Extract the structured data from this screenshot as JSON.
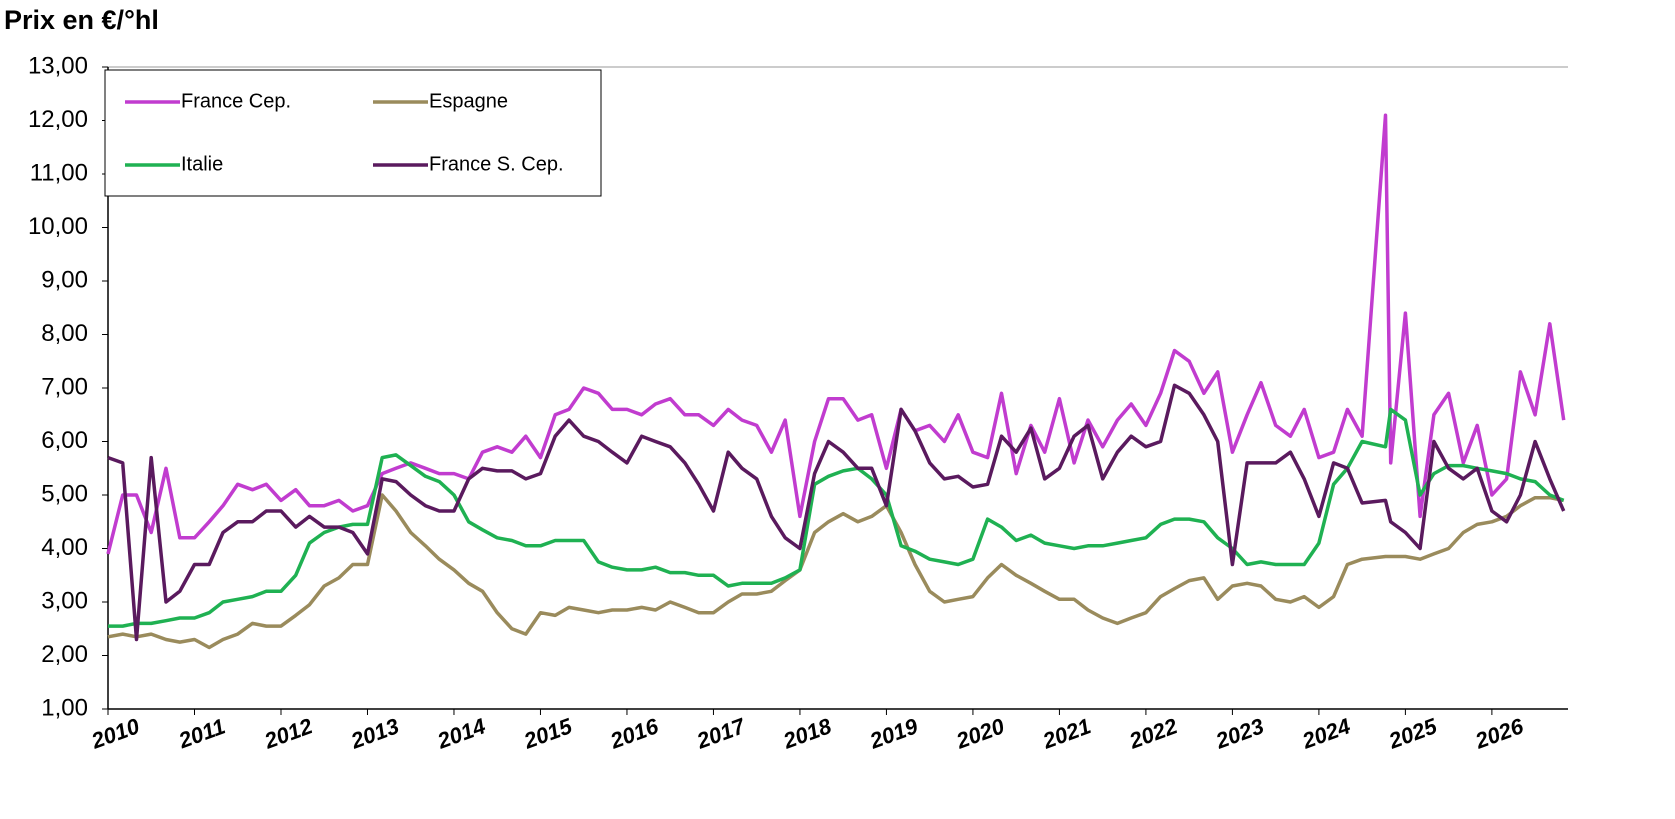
{
  "chart_data": {
    "type": "line",
    "title": "Prix en €/°hl",
    "x": [
      2010,
      2010.17,
      2010.33,
      2010.5,
      2010.67,
      2010.83,
      2011,
      2011.17,
      2011.33,
      2011.5,
      2011.67,
      2011.83,
      2012,
      2012.17,
      2012.33,
      2012.5,
      2012.67,
      2012.83,
      2013,
      2013.17,
      2013.33,
      2013.5,
      2013.67,
      2013.83,
      2014,
      2014.17,
      2014.33,
      2014.5,
      2014.67,
      2014.83,
      2015,
      2015.17,
      2015.33,
      2015.5,
      2015.67,
      2015.83,
      2016,
      2016.17,
      2016.33,
      2016.5,
      2016.67,
      2016.83,
      2017,
      2017.17,
      2017.33,
      2017.5,
      2017.67,
      2017.83,
      2018,
      2018.17,
      2018.33,
      2018.5,
      2018.67,
      2018.83,
      2019,
      2019.17,
      2019.33,
      2019.5,
      2019.67,
      2019.83,
      2020,
      2020.17,
      2020.33,
      2020.5,
      2020.67,
      2020.83,
      2021,
      2021.17,
      2021.33,
      2021.5,
      2021.67,
      2021.83,
      2022,
      2022.17,
      2022.33,
      2022.5,
      2022.67,
      2022.83,
      2023,
      2023.17,
      2023.33,
      2023.5,
      2023.67,
      2023.83,
      2024,
      2024.17,
      2024.33,
      2024.5,
      2024.77,
      2024.83,
      2025,
      2025.17,
      2025.33,
      2025.5,
      2025.67,
      2025.83,
      2026,
      2026.17,
      2026.33,
      2026.5,
      2026.67,
      2026.83
    ],
    "series": [
      {
        "name": "France Cep.",
        "color": "#c13ccf",
        "values": [
          3.9,
          5.0,
          5.0,
          4.3,
          5.5,
          4.2,
          4.2,
          4.5,
          4.8,
          5.2,
          5.1,
          5.2,
          4.9,
          5.1,
          4.8,
          4.8,
          4.9,
          4.7,
          4.8,
          5.4,
          5.5,
          5.6,
          5.5,
          5.4,
          5.4,
          5.3,
          5.8,
          5.9,
          5.8,
          6.1,
          5.7,
          6.5,
          6.6,
          7.0,
          6.9,
          6.6,
          6.6,
          6.5,
          6.7,
          6.8,
          6.5,
          6.5,
          6.3,
          6.6,
          6.4,
          6.3,
          5.8,
          6.4,
          4.6,
          6.0,
          6.8,
          6.8,
          6.4,
          6.5,
          5.5,
          6.6,
          6.2,
          6.3,
          6.0,
          6.5,
          5.8,
          5.7,
          6.9,
          5.4,
          6.3,
          5.8,
          6.8,
          5.6,
          6.4,
          5.9,
          6.4,
          6.7,
          6.3,
          6.9,
          7.7,
          7.5,
          6.9,
          7.3,
          5.8,
          6.5,
          7.1,
          6.3,
          6.1,
          6.6,
          5.7,
          5.8,
          6.6,
          6.1,
          12.1,
          5.6,
          8.4,
          4.6,
          6.5,
          6.9,
          5.6,
          6.3,
          5.0,
          5.3,
          7.3,
          6.5,
          8.2,
          6.4
        ]
      },
      {
        "name": "Espagne",
        "color": "#9a8b5c",
        "values": [
          2.35,
          2.4,
          2.35,
          2.4,
          2.3,
          2.25,
          2.3,
          2.15,
          2.3,
          2.4,
          2.6,
          2.55,
          2.55,
          2.75,
          2.95,
          3.3,
          3.45,
          3.7,
          3.7,
          5.0,
          4.7,
          4.3,
          4.05,
          3.8,
          3.6,
          3.35,
          3.2,
          2.8,
          2.5,
          2.4,
          2.8,
          2.75,
          2.9,
          2.85,
          2.8,
          2.85,
          2.85,
          2.9,
          2.85,
          3.0,
          2.9,
          2.8,
          2.8,
          3.0,
          3.15,
          3.15,
          3.2,
          3.4,
          3.6,
          4.3,
          4.5,
          4.65,
          4.5,
          4.6,
          4.8,
          4.3,
          3.7,
          3.2,
          3.0,
          3.05,
          3.1,
          3.45,
          3.7,
          3.5,
          3.35,
          3.2,
          3.05,
          3.05,
          2.85,
          2.7,
          2.6,
          2.7,
          2.8,
          3.1,
          3.25,
          3.4,
          3.45,
          3.05,
          3.3,
          3.35,
          3.3,
          3.05,
          3.0,
          3.1,
          2.9,
          3.1,
          3.7,
          3.8,
          3.85,
          3.85,
          3.85,
          3.8,
          3.9,
          4.0,
          4.3,
          4.45,
          4.5,
          4.6,
          4.8,
          4.95,
          4.95,
          4.9
        ]
      },
      {
        "name": "Italie",
        "color": "#1fb152",
        "values": [
          2.55,
          2.55,
          2.6,
          2.6,
          2.65,
          2.7,
          2.7,
          2.8,
          3.0,
          3.05,
          3.1,
          3.2,
          3.2,
          3.5,
          4.1,
          4.3,
          4.4,
          4.45,
          4.45,
          5.7,
          5.75,
          5.55,
          5.35,
          5.25,
          5.0,
          4.5,
          4.35,
          4.2,
          4.15,
          4.05,
          4.05,
          4.15,
          4.15,
          4.15,
          3.75,
          3.65,
          3.6,
          3.6,
          3.65,
          3.55,
          3.55,
          3.5,
          3.5,
          3.3,
          3.35,
          3.35,
          3.35,
          3.45,
          3.6,
          5.2,
          5.35,
          5.45,
          5.5,
          5.3,
          5.0,
          4.05,
          3.95,
          3.8,
          3.75,
          3.7,
          3.8,
          4.55,
          4.4,
          4.15,
          4.25,
          4.1,
          4.05,
          4.0,
          4.05,
          4.05,
          4.1,
          4.15,
          4.2,
          4.45,
          4.55,
          4.55,
          4.5,
          4.2,
          4.0,
          3.7,
          3.75,
          3.7,
          3.7,
          3.7,
          4.1,
          5.2,
          5.5,
          6.0,
          5.9,
          6.6,
          6.4,
          5.0,
          5.4,
          5.55,
          5.55,
          5.5,
          5.45,
          5.4,
          5.3,
          5.25,
          5.0,
          4.9
        ]
      },
      {
        "name": "France S. Cep.",
        "color": "#5a1a5e",
        "values": [
          5.7,
          5.6,
          2.3,
          5.7,
          3.0,
          3.2,
          3.7,
          3.7,
          4.3,
          4.5,
          4.5,
          4.7,
          4.7,
          4.4,
          4.6,
          4.4,
          4.4,
          4.3,
          3.9,
          5.3,
          5.25,
          5.0,
          4.8,
          4.7,
          4.7,
          5.3,
          5.5,
          5.45,
          5.45,
          5.3,
          5.4,
          6.1,
          6.4,
          6.1,
          6.0,
          5.8,
          5.6,
          6.1,
          6.0,
          5.9,
          5.6,
          5.2,
          4.7,
          5.8,
          5.5,
          5.3,
          4.6,
          4.2,
          4.0,
          5.4,
          6.0,
          5.8,
          5.5,
          5.5,
          4.8,
          6.6,
          6.2,
          5.6,
          5.3,
          5.35,
          5.15,
          5.2,
          6.1,
          5.8,
          6.25,
          5.3,
          5.5,
          6.1,
          6.3,
          5.3,
          5.8,
          6.1,
          5.9,
          6.0,
          7.05,
          6.9,
          6.5,
          6.0,
          3.7,
          5.6,
          5.6,
          5.6,
          5.8,
          5.3,
          4.6,
          5.6,
          5.5,
          4.85,
          4.9,
          4.5,
          4.3,
          4.0,
          6.0,
          5.5,
          5.3,
          5.5,
          4.7,
          4.5,
          5.0,
          6.0,
          5.3,
          4.7
        ]
      }
    ],
    "xlim": [
      2010,
      2026.88
    ],
    "xticks": [
      2010,
      2011,
      2012,
      2013,
      2014,
      2015,
      2016,
      2017,
      2018,
      2019,
      2020,
      2021,
      2022,
      2023,
      2024,
      2025,
      2026
    ],
    "ylim": [
      1,
      13
    ],
    "yticks": [
      {
        "value": 1,
        "label": "1,00"
      },
      {
        "value": 2,
        "label": "2,00"
      },
      {
        "value": 3,
        "label": "3,00"
      },
      {
        "value": 4,
        "label": "4,00"
      },
      {
        "value": 5,
        "label": "5,00"
      },
      {
        "value": 6,
        "label": "6,00"
      },
      {
        "value": 7,
        "label": "7,00"
      },
      {
        "value": 8,
        "label": "8,00"
      },
      {
        "value": 9,
        "label": "9,00"
      },
      {
        "value": 10,
        "label": "10,00"
      },
      {
        "value": 11,
        "label": "11,00"
      },
      {
        "value": 12,
        "label": "12,00"
      },
      {
        "value": 13,
        "label": "13,00"
      }
    ],
    "legend": "top-left"
  }
}
